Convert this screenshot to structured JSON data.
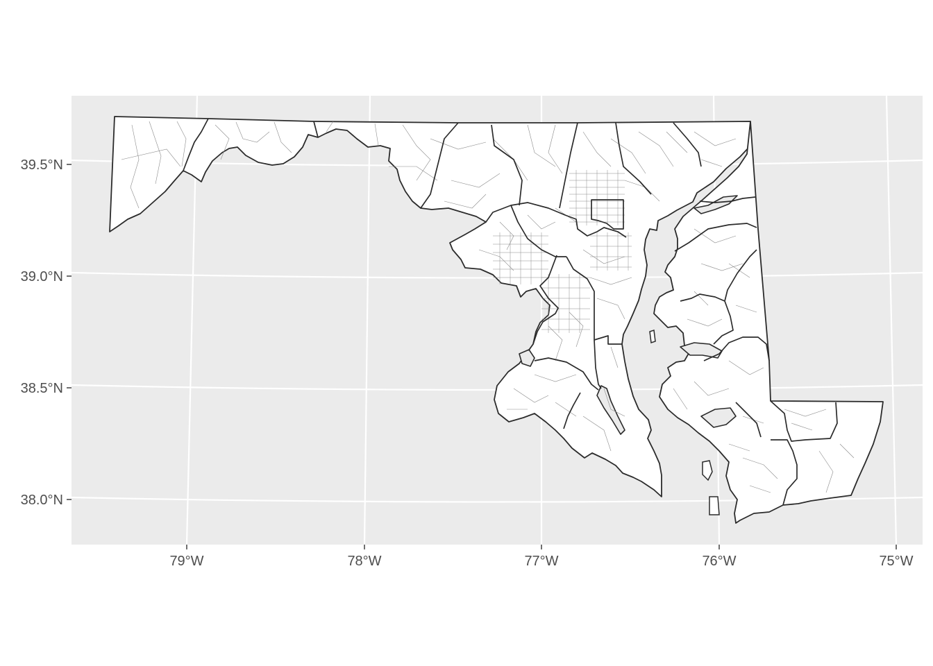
{
  "map": {
    "title": "",
    "region": "Maryland",
    "layers": [
      "census tracts",
      "county boundaries"
    ],
    "background_color": "#ebebeb",
    "grid_color": "#ffffff",
    "boundary_color": "#2b2b2b",
    "tract_color": "#8a8a8a",
    "grid": true,
    "longitude_range": [
      -79.65,
      -74.85
    ],
    "latitude_range": [
      37.8,
      39.8
    ]
  },
  "axes": {
    "y_ticks": [
      {
        "value": 39.5,
        "label": "39.5°N"
      },
      {
        "value": 39.0,
        "label": "39.0°N"
      },
      {
        "value": 38.5,
        "label": "38.5°N"
      },
      {
        "value": 38.0,
        "label": "38.0°N"
      }
    ],
    "x_ticks": [
      {
        "value": -79,
        "label": "79°W"
      },
      {
        "value": -78,
        "label": "78°W"
      },
      {
        "value": -77,
        "label": "77°W"
      },
      {
        "value": -76,
        "label": "76°W"
      },
      {
        "value": -75,
        "label": "75°W"
      }
    ]
  }
}
